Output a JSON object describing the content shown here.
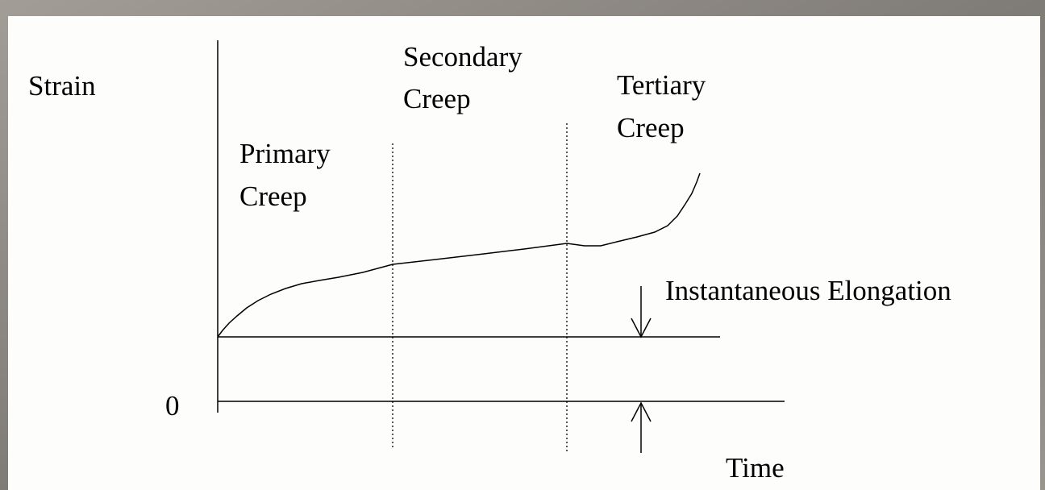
{
  "axes": {
    "y_label": "Strain",
    "x_label": "Time",
    "origin": "0"
  },
  "phases": [
    {
      "lines": [
        "Primary",
        "Creep"
      ]
    },
    {
      "lines": [
        "Secondary",
        "Creep"
      ]
    },
    {
      "lines": [
        "Tertiary",
        "Creep"
      ]
    }
  ],
  "annotation": "Instantaneous Elongation"
}
